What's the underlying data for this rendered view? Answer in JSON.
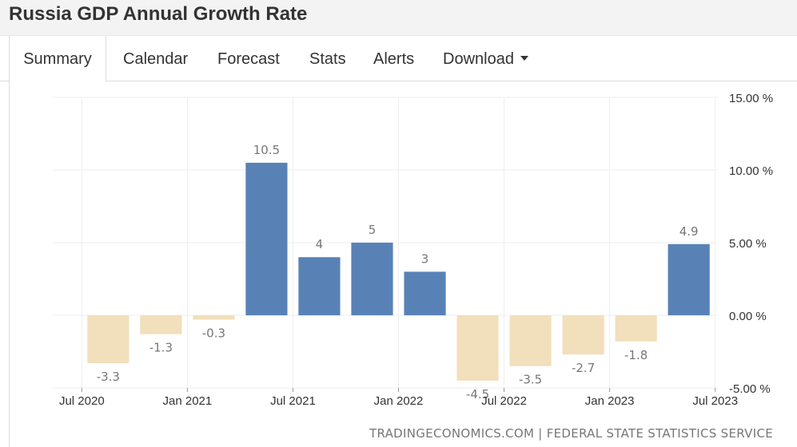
{
  "page": {
    "title": "Russia GDP Annual Growth Rate",
    "tabs": [
      {
        "label": "Summary",
        "active": true
      },
      {
        "label": "Calendar",
        "active": false
      },
      {
        "label": "Forecast",
        "active": false
      },
      {
        "label": "Stats",
        "active": false
      },
      {
        "label": "Alerts",
        "active": false
      },
      {
        "label": "Download",
        "active": false,
        "dropdown": true
      }
    ],
    "source": "TRADINGECONOMICS.COM | FEDERAL STATE STATISTICS SERVICE"
  },
  "chart_data": {
    "type": "bar",
    "title": "Russia GDP Annual Growth Rate",
    "categories": [
      "Q3 2020",
      "Q4 2020",
      "Q1 2021",
      "Q2 2021",
      "Q3 2021",
      "Q4 2021",
      "Q1 2022",
      "Q2 2022",
      "Q3 2022",
      "Q4 2022",
      "Q1 2023",
      "Q2 2023"
    ],
    "values": [
      -3.3,
      -1.3,
      -0.3,
      10.5,
      4,
      5,
      3,
      -4.5,
      -3.5,
      -2.7,
      -1.8,
      4.9
    ],
    "data_labels": [
      "-3.3",
      "-1.3",
      "-0.3",
      "10.5",
      "4",
      "5",
      "3",
      "-4.5",
      "-3.5",
      "-2.7",
      "-1.8",
      "4.9"
    ],
    "x_ticks": [
      "Jul 2020",
      "Jan 2021",
      "Jul 2021",
      "Jan 2022",
      "Jul 2022",
      "Jan 2023",
      "Jul 2023"
    ],
    "x_tick_positions": [
      0,
      2,
      4,
      6,
      8,
      10,
      12
    ],
    "y_ticks": [
      15,
      10,
      5,
      0,
      -5
    ],
    "y_tick_labels": [
      "15.00 %",
      "10.00 %",
      "5.00 %",
      "0.00 %",
      "-5.00 %"
    ],
    "ylim": [
      -5,
      15
    ],
    "y_axis_side": "right",
    "grid": true,
    "colors": {
      "positive": "#5882b6",
      "negative": "#f2dfbb",
      "label": "#777777",
      "grid": "#eeeeee",
      "tick": "#333333"
    }
  }
}
